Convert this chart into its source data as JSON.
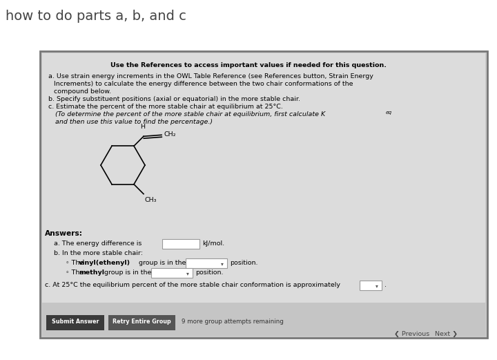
{
  "title": "how to do parts a, b, and c",
  "title_fontsize": 14,
  "title_color": "#444444",
  "bg_color": "#ffffff",
  "panel_outer_color": "#888888",
  "panel_bg": "#c8c8c8",
  "panel_inner_bg": "#dcdcdc",
  "header_text": "Use the References to access important values if needed for this question.",
  "part_a_line1": "a. Use strain energy increments in the OWL Table Reference (see References button, Strain Energy",
  "part_a_line2": "    Increments) to calculate the energy difference between the two chair conformations of the",
  "part_a_line3": "    compound below.",
  "part_b_text": "b. Specify substituent positions (axial or equatorial) in the more stable chair.",
  "part_c_text": "c. Estimate the percent of the more stable chair at equilibrium at 25°C.",
  "italic_line1": "(To determine the percent of the more stable chair at equilibrium, first calculate Kₑₑ",
  "italic_keq": "eq",
  "italic_line2": "and then use this value to find the percentage.)",
  "answers_label": "Answers:",
  "ans_a_pre": "a. The energy difference is",
  "ans_a_unit": "kJ/mol.",
  "ans_b_header": "b. In the more stable chair:",
  "ans_b1_pre": "◦ The ",
  "ans_b1_bold": "vinyl(ethenyl)",
  "ans_b1_post": " group is in the",
  "ans_b2_pre": "◦ The ",
  "ans_b2_bold": "methyl",
  "ans_b2_post": " group is in the",
  "pos_suffix": "position.",
  "ans_c_text": "c. At 25°C the equilibrium percent of the more stable chair conformation is approximately",
  "btn1_text": "Submit Answer",
  "btn2_text": "Retry Entire Group",
  "attempts_text": "9 more group attempts remaining",
  "prev_text": "Previous",
  "next_text": "Next",
  "body_fs": 7.2,
  "small_fs": 6.8
}
